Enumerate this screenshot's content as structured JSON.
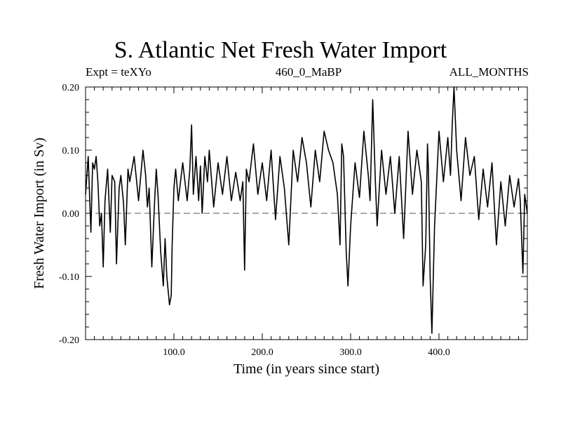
{
  "chart_data": {
    "type": "line",
    "title": "S. Atlantic Net Fresh Water Import",
    "subtitle_left": "Expt = teXYo",
    "subtitle_center": "460_0_MaBP",
    "subtitle_right": "ALL_MONTHS",
    "xlabel": "Time (in years since start)",
    "ylabel": "Fresh Water Import (in Sv)",
    "xlim": [
      0,
      500
    ],
    "ylim": [
      -0.2,
      0.2
    ],
    "xticks": [
      100,
      200,
      300,
      400
    ],
    "xtick_labels": [
      "100.0",
      "200.0",
      "300.0",
      "400.0"
    ],
    "yticks": [
      0.2,
      0.1,
      0.0,
      -0.1,
      -0.2
    ],
    "ytick_labels": [
      "0.20",
      "0.10",
      "0.00",
      "-0.10",
      "-0.20"
    ],
    "reference_line": 0.0,
    "grid": false,
    "legend": "none",
    "line_color": "#000000",
    "series": [
      {
        "x": [
          0,
          3,
          6,
          8,
          10,
          12,
          14,
          16,
          18,
          20,
          22,
          25,
          28,
          30,
          33,
          35,
          38,
          40,
          43,
          45,
          48,
          50,
          55,
          60,
          65,
          68,
          70,
          72,
          75,
          78,
          80,
          82,
          85,
          88,
          90,
          92,
          95,
          97,
          98,
          100,
          102,
          105,
          110,
          115,
          118,
          120,
          122,
          125,
          128,
          130,
          132,
          135,
          138,
          140,
          145,
          150,
          155,
          160,
          165,
          170,
          175,
          178,
          180,
          182,
          185,
          190,
          195,
          200,
          205,
          210,
          215,
          220,
          225,
          230,
          235,
          240,
          245,
          250,
          255,
          260,
          265,
          270,
          275,
          280,
          285,
          288,
          290,
          292,
          295,
          297,
          300,
          305,
          310,
          315,
          320,
          322,
          325,
          328,
          330,
          335,
          340,
          345,
          350,
          355,
          360,
          365,
          370,
          375,
          380,
          382,
          385,
          387,
          388,
          390,
          392,
          395,
          400,
          405,
          410,
          413,
          415,
          417,
          420,
          425,
          430,
          435,
          440,
          445,
          450,
          455,
          460,
          465,
          470,
          475,
          480,
          485,
          490,
          492,
          495,
          497,
          500
        ],
        "y": [
          0.03,
          0.09,
          -0.03,
          0.08,
          0.07,
          0.09,
          0.05,
          -0.02,
          0.0,
          -0.085,
          0.02,
          0.07,
          -0.03,
          0.06,
          0.05,
          -0.08,
          0.04,
          0.06,
          0.015,
          -0.05,
          0.07,
          0.05,
          0.09,
          0.02,
          0.1,
          0.06,
          0.01,
          0.04,
          -0.085,
          0.015,
          0.07,
          0.03,
          -0.06,
          -0.115,
          -0.04,
          -0.1,
          -0.145,
          -0.13,
          -0.05,
          0.04,
          0.07,
          0.02,
          0.08,
          0.02,
          0.07,
          0.14,
          0.03,
          0.09,
          0.02,
          0.075,
          0.0,
          0.09,
          0.05,
          0.1,
          0.01,
          0.08,
          0.03,
          0.09,
          0.02,
          0.065,
          0.02,
          0.05,
          -0.09,
          0.07,
          0.05,
          0.11,
          0.03,
          0.08,
          0.02,
          0.1,
          -0.01,
          0.09,
          0.04,
          -0.05,
          0.1,
          0.05,
          0.12,
          0.08,
          0.01,
          0.1,
          0.05,
          0.13,
          0.1,
          0.08,
          0.03,
          -0.05,
          0.11,
          0.09,
          -0.06,
          -0.115,
          -0.02,
          0.08,
          0.025,
          0.13,
          0.06,
          0.02,
          0.18,
          0.05,
          -0.02,
          0.1,
          0.03,
          0.09,
          0.0,
          0.09,
          -0.04,
          0.13,
          0.03,
          0.1,
          0.05,
          -0.115,
          -0.05,
          0.11,
          0.07,
          -0.1,
          -0.19,
          -0.02,
          0.13,
          0.05,
          0.12,
          0.06,
          0.14,
          0.2,
          0.1,
          0.02,
          0.12,
          0.06,
          0.09,
          -0.01,
          0.07,
          0.01,
          0.08,
          -0.05,
          0.05,
          -0.02,
          0.06,
          0.01,
          0.055,
          0.02,
          -0.095,
          0.03,
          0.0
        ]
      }
    ]
  }
}
